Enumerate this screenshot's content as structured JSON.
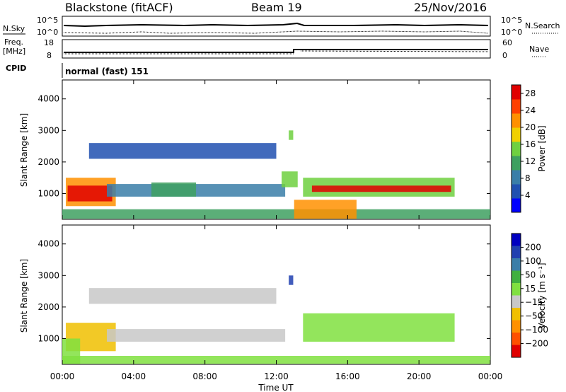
{
  "header": {
    "station": "Blackstone (fitACF)",
    "beam": "Beam 19",
    "date": "25/Nov/2016"
  },
  "status_panels": {
    "nsky_label": "N.Sky",
    "nsearch_label": "N.Search",
    "noise_ticks": [
      "10^5",
      "10^0"
    ],
    "freq_label_line1": "Freq.",
    "freq_label_line2": "[MHz]",
    "freq_ticks": [
      18,
      8
    ],
    "nave_label": "Nave",
    "nave_ticks": [
      60,
      0
    ],
    "cpid_label": "CPID",
    "cpid_text": "normal (fast) 151"
  },
  "colors": {
    "power_scale": [
      "#0000ff",
      "#2050b0",
      "#3a7ea8",
      "#3ea060",
      "#6fd040",
      "#f0d000",
      "#ff9000",
      "#ff4000",
      "#e00000"
    ],
    "velocity_scale": [
      "#e00000",
      "#ff5000",
      "#ff9000",
      "#f0c000",
      "#c8c8c8",
      "#80e040",
      "#40b040",
      "#3a7ea8",
      "#2040b0",
      "#0000c0"
    ]
  },
  "chart_data": [
    {
      "type": "heatmap",
      "panel": "power",
      "ylabel": "Slant Range [km]",
      "xlabel": "Time UT",
      "yticks": [
        1000,
        2000,
        3000,
        4000
      ],
      "ylim": [
        180,
        4600
      ],
      "xticks": [
        "00:00",
        "04:00",
        "08:00",
        "12:00",
        "16:00",
        "20:00",
        "00:00"
      ],
      "xlim_hours": [
        0,
        24
      ],
      "colorbar_label": "Power [dB]",
      "colorbar_ticks": [
        4,
        8,
        12,
        16,
        20,
        24,
        28
      ],
      "colorbar_range": [
        0,
        30
      ],
      "bands": [
        {
          "t0": 0.2,
          "t1": 3.0,
          "r0": 600,
          "r1": 1500,
          "value": 20
        },
        {
          "t0": 0.3,
          "t1": 2.8,
          "r0": 750,
          "r1": 1250,
          "value": 27
        },
        {
          "t0": 2.5,
          "t1": 12.5,
          "r0": 900,
          "r1": 1300,
          "value": 8
        },
        {
          "t0": 5.0,
          "t1": 7.5,
          "r0": 900,
          "r1": 1350,
          "value": 12
        },
        {
          "t0": 0.0,
          "t1": 24.0,
          "r0": 200,
          "r1": 500,
          "value": 10
        },
        {
          "t0": 13.5,
          "t1": 22.0,
          "r0": 900,
          "r1": 1500,
          "value": 16
        },
        {
          "t0": 14.0,
          "t1": 21.8,
          "r0": 1050,
          "r1": 1250,
          "value": 27
        },
        {
          "t0": 13.0,
          "t1": 16.5,
          "r0": 200,
          "r1": 800,
          "value": 20
        },
        {
          "t0": 12.3,
          "t1": 13.2,
          "r0": 1200,
          "r1": 1700,
          "value": 14
        },
        {
          "t0": 12.7,
          "t1": 12.95,
          "r0": 2700,
          "r1": 3000,
          "value": 14
        },
        {
          "t0": 1.5,
          "t1": 12.0,
          "r0": 2100,
          "r1": 2600,
          "value": 6
        }
      ]
    },
    {
      "type": "heatmap",
      "panel": "velocity",
      "ylabel": "Slant Range [km]",
      "xlabel": "Time UT",
      "yticks": [
        1000,
        2000,
        3000,
        4000
      ],
      "ylim": [
        180,
        4600
      ],
      "xticks": [
        "00:00",
        "04:00",
        "08:00",
        "12:00",
        "16:00",
        "20:00",
        "00:00"
      ],
      "xlim_hours": [
        0,
        24
      ],
      "colorbar_label": "Velocity [m s⁻¹]",
      "colorbar_ticks": [
        "200",
        "100",
        "50",
        "15",
        "−15",
        "−50",
        "−100",
        "−200"
      ],
      "colorbar_range": [
        -250,
        250
      ],
      "bands": [
        {
          "t0": 0.2,
          "t1": 3.0,
          "r0": 600,
          "r1": 1500,
          "value": -80
        },
        {
          "t0": 2.5,
          "t1": 12.5,
          "r0": 900,
          "r1": 1300,
          "value": -30
        },
        {
          "t0": 0.0,
          "t1": 24.0,
          "r0": 200,
          "r1": 450,
          "value": 30
        },
        {
          "t0": 0.0,
          "t1": 1.0,
          "r0": 200,
          "r1": 1000,
          "value": 0
        },
        {
          "t0": 13.5,
          "t1": 22.0,
          "r0": 900,
          "r1": 1800,
          "value": 0
        },
        {
          "t0": 12.7,
          "t1": 12.95,
          "r0": 2700,
          "r1": 3000,
          "value": 150
        },
        {
          "t0": 1.5,
          "t1": 12.0,
          "r0": 2100,
          "r1": 2600,
          "value": -40
        }
      ]
    }
  ]
}
